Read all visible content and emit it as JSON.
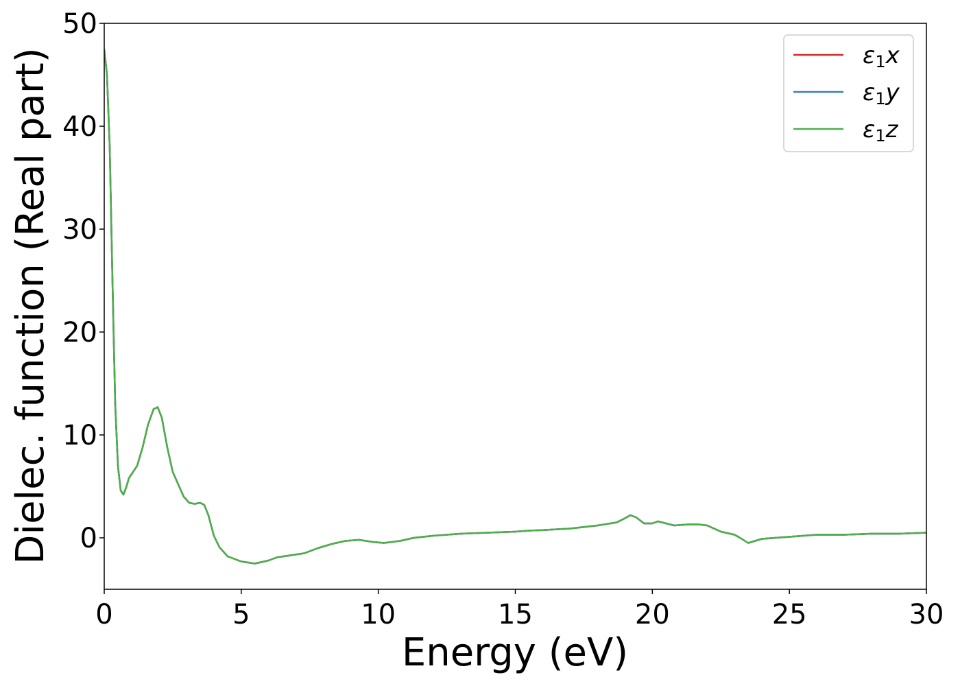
{
  "chart_data": {
    "type": "line",
    "xlabel": "Energy (eV)",
    "ylabel": "Dielec. function (Real part)",
    "xlim": [
      0,
      30
    ],
    "ylim": [
      -5,
      50
    ],
    "xticks": [
      "0",
      "5",
      "10",
      "15",
      "20",
      "25",
      "30"
    ],
    "yticks": [
      "0",
      "10",
      "20",
      "30",
      "40",
      "50"
    ],
    "grid": false,
    "legend": "top-right",
    "legend_entries": [
      {
        "base": "ε",
        "sub": "1",
        "axis": "x",
        "color": "#d62728"
      },
      {
        "base": "ε",
        "sub": "1",
        "axis": "y",
        "color": "#3a7ebf"
      },
      {
        "base": "ε",
        "sub": "1",
        "axis": "z",
        "color": "#4daf4a"
      }
    ],
    "x": [
      0,
      0.1,
      0.2,
      0.3,
      0.4,
      0.5,
      0.6,
      0.7,
      0.8,
      0.9,
      1.0,
      1.2,
      1.4,
      1.6,
      1.8,
      1.95,
      2.1,
      2.3,
      2.5,
      2.7,
      2.9,
      3.1,
      3.3,
      3.5,
      3.65,
      3.8,
      4.0,
      4.2,
      4.5,
      5.0,
      5.5,
      6.0,
      6.3,
      6.8,
      7.3,
      7.8,
      8.3,
      8.8,
      9.3,
      9.8,
      10.2,
      10.8,
      11.3,
      12.0,
      13.0,
      14.0,
      15.0,
      15.5,
      16.0,
      17.0,
      18.0,
      18.7,
      19.0,
      19.2,
      19.4,
      19.7,
      20.0,
      20.2,
      20.5,
      20.8,
      21.3,
      21.7,
      22.0,
      22.5,
      23.0,
      23.2,
      23.5,
      24.0,
      24.5,
      25.0,
      26.0,
      27.0,
      28.0,
      29.0,
      30.0
    ],
    "series": [
      {
        "values": [
          47.5,
          45,
          38,
          25,
          13,
          7,
          4.6,
          4.2,
          4.9,
          5.8,
          6.2,
          7.0,
          8.8,
          11.0,
          12.5,
          12.7,
          11.7,
          8.8,
          6.4,
          5.2,
          4.0,
          3.4,
          3.3,
          3.4,
          3.2,
          2.2,
          0.2,
          -0.9,
          -1.8,
          -2.3,
          -2.5,
          -2.2,
          -1.9,
          -1.7,
          -1.5,
          -1.0,
          -0.6,
          -0.3,
          -0.2,
          -0.4,
          -0.5,
          -0.3,
          0.0,
          0.2,
          0.4,
          0.5,
          0.6,
          0.7,
          0.75,
          0.9,
          1.2,
          1.5,
          1.9,
          2.2,
          2.0,
          1.4,
          1.4,
          1.6,
          1.4,
          1.2,
          1.3,
          1.3,
          1.2,
          0.6,
          0.3,
          0.0,
          -0.5,
          -0.1,
          0.0,
          0.1,
          0.3,
          0.3,
          0.4,
          0.4,
          0.5
        ]
      },
      {
        "values": [
          47.5,
          45,
          38,
          25,
          13,
          7,
          4.6,
          4.2,
          4.9,
          5.8,
          6.2,
          7.0,
          8.8,
          11.0,
          12.5,
          12.7,
          11.7,
          8.8,
          6.4,
          5.2,
          4.0,
          3.4,
          3.3,
          3.4,
          3.2,
          2.2,
          0.2,
          -0.9,
          -1.8,
          -2.3,
          -2.5,
          -2.2,
          -1.9,
          -1.7,
          -1.5,
          -1.0,
          -0.6,
          -0.3,
          -0.2,
          -0.4,
          -0.5,
          -0.3,
          0.0,
          0.2,
          0.4,
          0.5,
          0.6,
          0.7,
          0.75,
          0.9,
          1.2,
          1.5,
          1.9,
          2.2,
          2.0,
          1.4,
          1.4,
          1.6,
          1.4,
          1.2,
          1.3,
          1.3,
          1.2,
          0.6,
          0.3,
          0.0,
          -0.5,
          -0.1,
          0.0,
          0.1,
          0.3,
          0.3,
          0.4,
          0.4,
          0.5
        ]
      },
      {
        "values": [
          47.5,
          45,
          38,
          25,
          13,
          7,
          4.6,
          4.2,
          4.9,
          5.8,
          6.2,
          7.0,
          8.8,
          11.0,
          12.5,
          12.7,
          11.7,
          8.8,
          6.4,
          5.2,
          4.0,
          3.4,
          3.3,
          3.4,
          3.2,
          2.2,
          0.2,
          -0.9,
          -1.8,
          -2.3,
          -2.5,
          -2.2,
          -1.9,
          -1.7,
          -1.5,
          -1.0,
          -0.6,
          -0.3,
          -0.2,
          -0.4,
          -0.5,
          -0.3,
          0.0,
          0.2,
          0.4,
          0.5,
          0.6,
          0.7,
          0.75,
          0.9,
          1.2,
          1.5,
          1.9,
          2.2,
          2.0,
          1.4,
          1.4,
          1.6,
          1.4,
          1.2,
          1.3,
          1.3,
          1.2,
          0.6,
          0.3,
          0.0,
          -0.5,
          -0.1,
          0.0,
          0.1,
          0.3,
          0.3,
          0.4,
          0.4,
          0.5
        ]
      }
    ]
  }
}
